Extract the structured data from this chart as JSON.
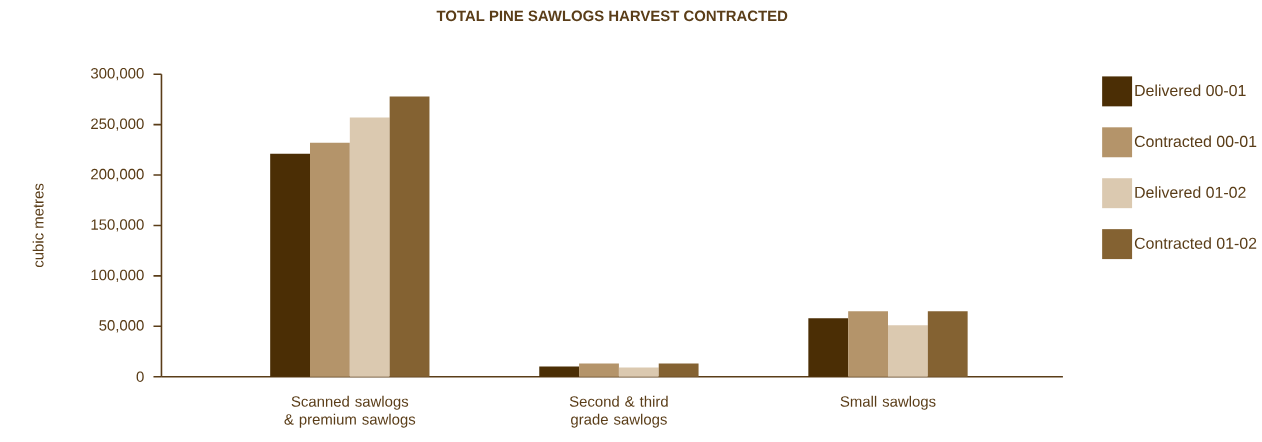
{
  "chart_data": {
    "type": "bar",
    "title": "TOTAL PINE SAWLOGS HARVEST CONTRACTED",
    "ylabel": "cubic metres",
    "categories": [
      "Scanned sawlogs & premium sawlogs",
      "Second & third grade sawlogs",
      "Small sawlogs"
    ],
    "series": [
      {
        "name": "Delivered 00-01",
        "color": "#4b2e05",
        "values": [
          221000,
          10000,
          58000
        ]
      },
      {
        "name": "Contracted 00-01",
        "color": "#b4946a",
        "values": [
          232000,
          13000,
          65000
        ]
      },
      {
        "name": "Delivered 01-02",
        "color": "#dbc9b0",
        "values": [
          257000,
          9000,
          51000
        ]
      },
      {
        "name": "Contracted 01-02",
        "color": "#846232",
        "values": [
          278000,
          13000,
          65000
        ]
      }
    ],
    "ylim": [
      0,
      300000
    ],
    "yticks": [
      0,
      {
        "value": 50000,
        "label": "50,000"
      },
      {
        "value": 100000,
        "label": "100,000"
      },
      {
        "value": 150000,
        "label": "150,000"
      },
      {
        "value": 200000,
        "label": "200,000"
      },
      {
        "value": 250000,
        "label": "250,000"
      },
      {
        "value": 300000,
        "label": "300,000"
      }
    ],
    "grid": false,
    "legend": "right"
  }
}
